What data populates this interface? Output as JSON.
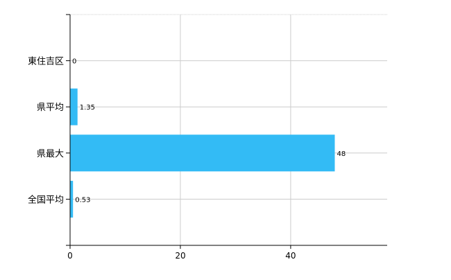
{
  "chart_data": {
    "type": "bar",
    "orientation": "horizontal",
    "categories": [
      "東住吉区",
      "県平均",
      "県最大",
      "全国平均"
    ],
    "values": [
      0,
      1.35,
      48,
      0.53
    ],
    "data_labels": [
      "0",
      "1.35",
      "48",
      "0.53"
    ],
    "xlim": [
      0,
      57.5
    ],
    "xticks": [
      0,
      20,
      40
    ],
    "xtick_labels": [
      "0",
      "20",
      "40"
    ],
    "title": "",
    "xlabel": "",
    "ylabel": "",
    "grid": true,
    "legend": "none",
    "bar_color": "#33bbf5",
    "grid_color": "#cccccc"
  }
}
